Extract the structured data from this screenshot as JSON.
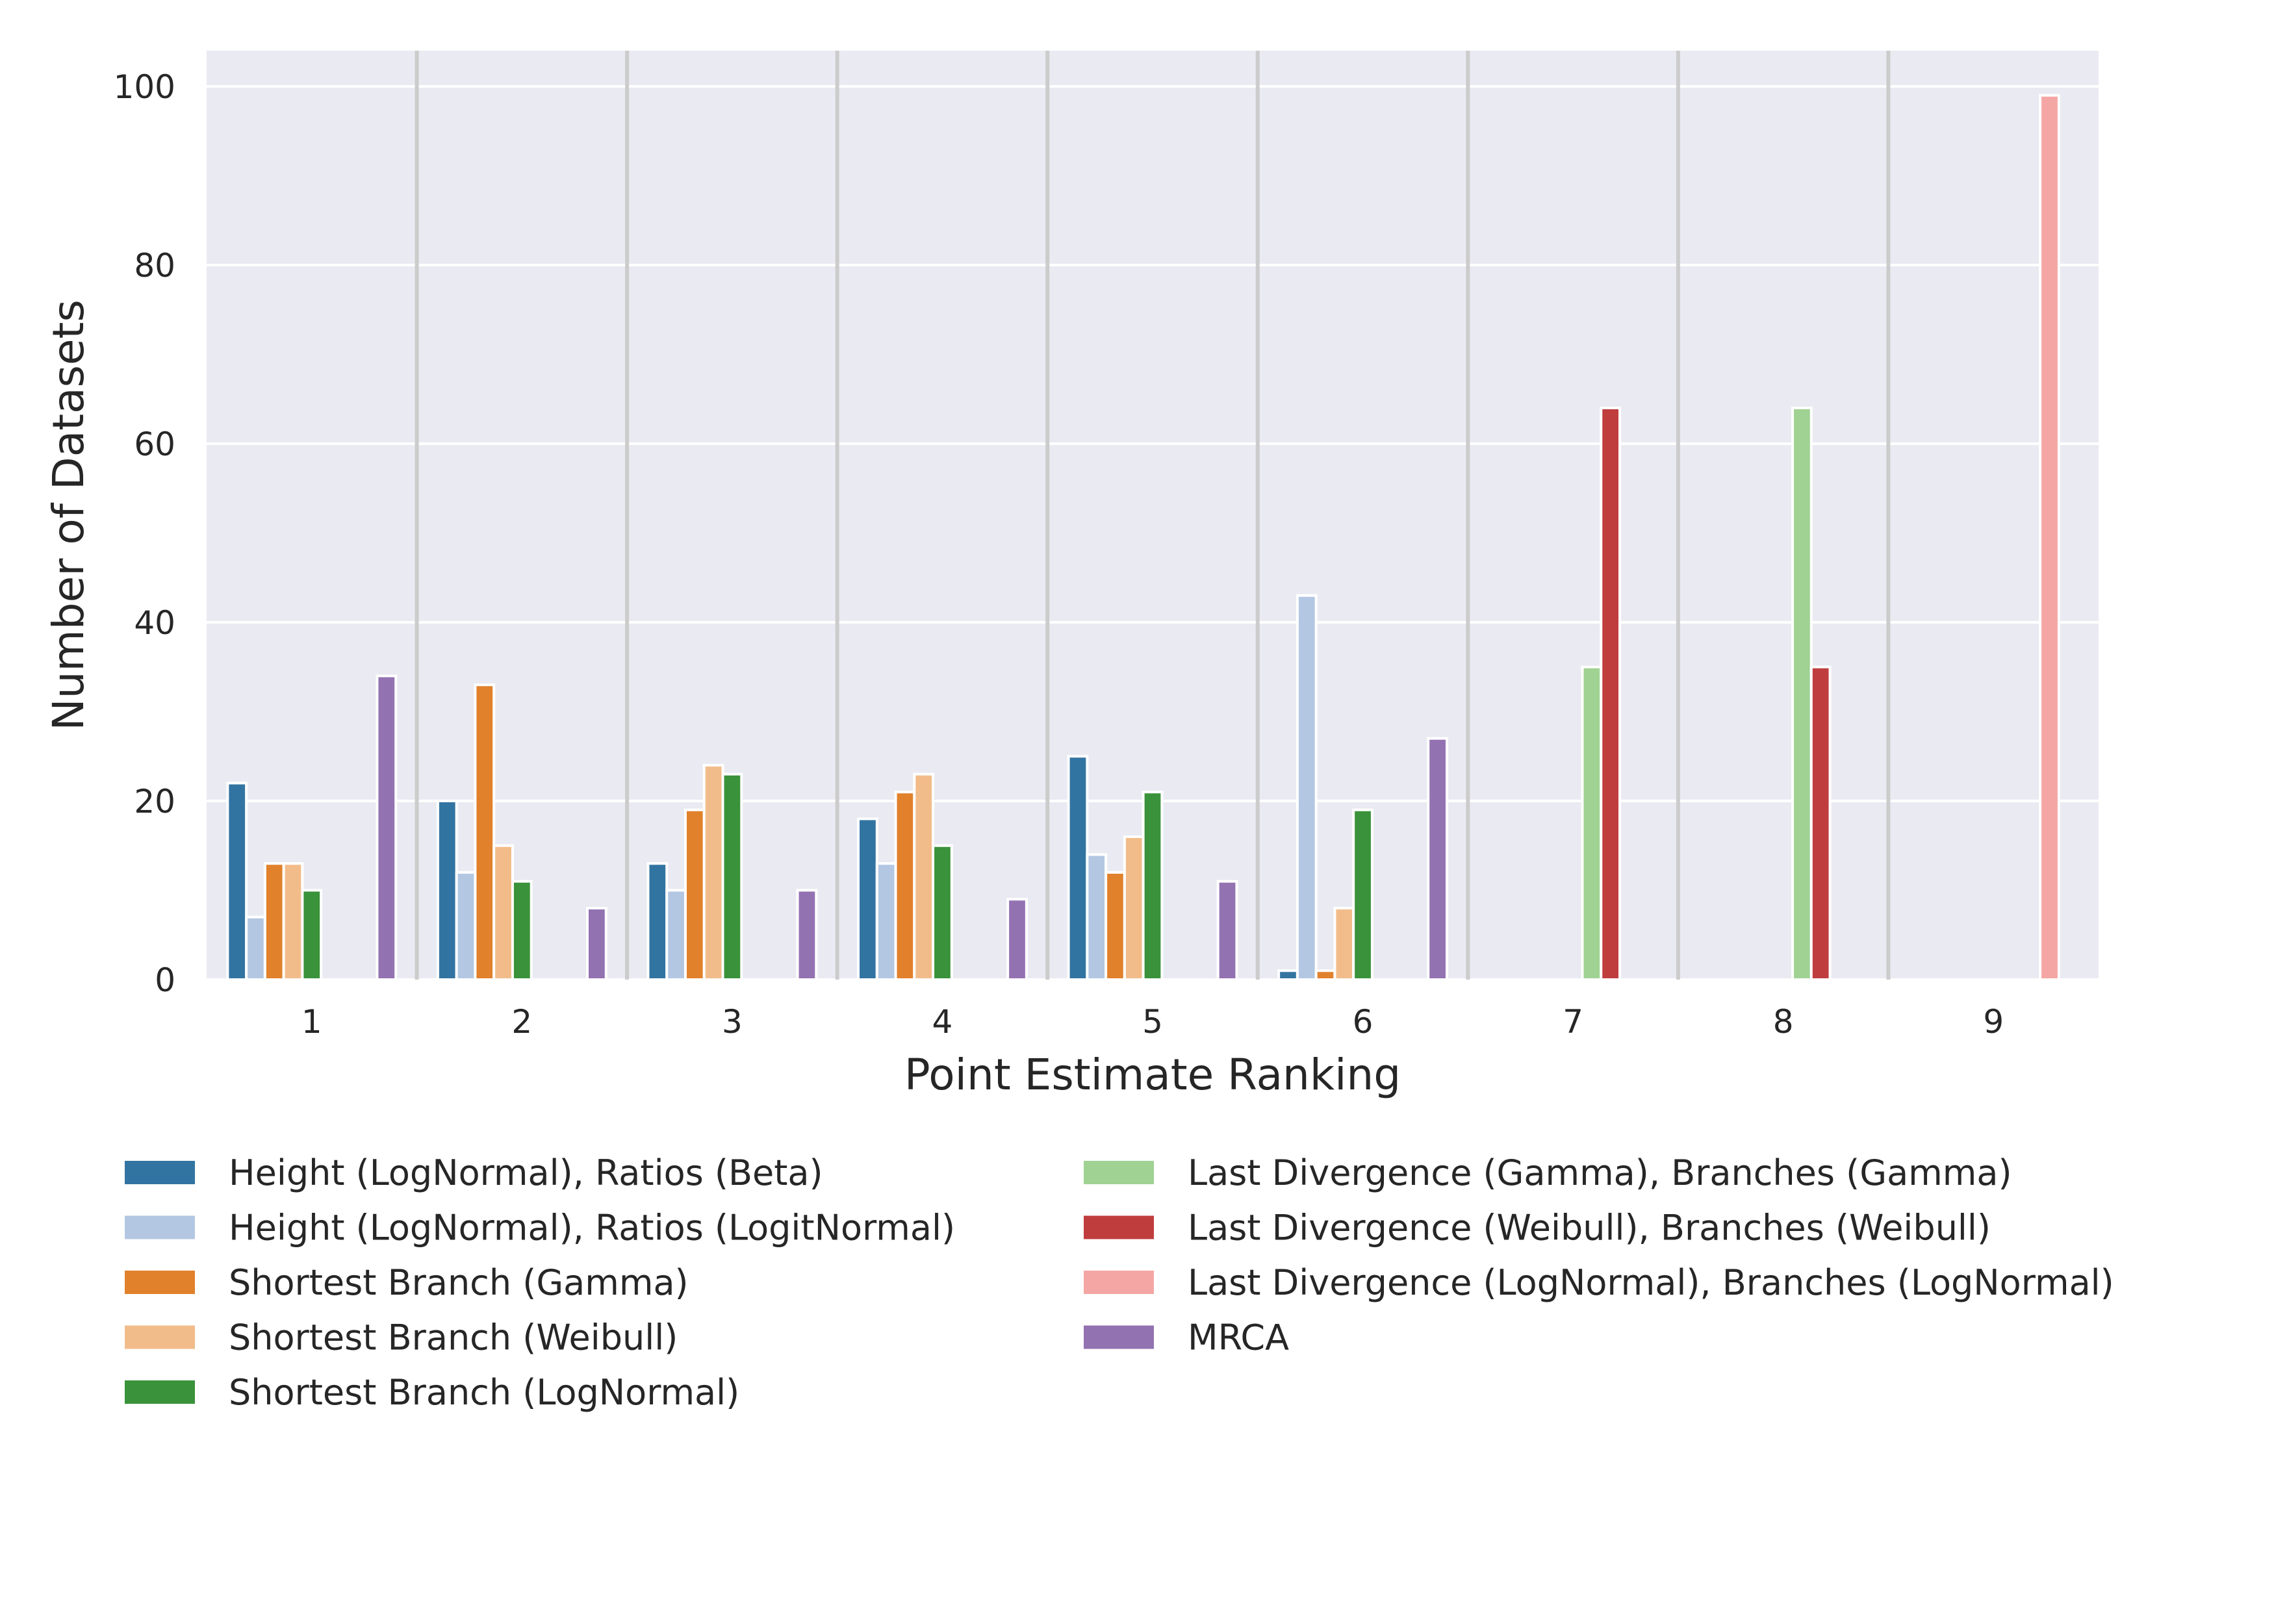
{
  "chart_data": {
    "type": "bar",
    "xlabel": "Point Estimate Ranking",
    "ylabel": "Number of Datasets",
    "ylim": [
      0,
      104
    ],
    "yticks": [
      0,
      20,
      40,
      60,
      80,
      100
    ],
    "grid": true,
    "legend_position": "bottom",
    "categories": [
      "1",
      "2",
      "3",
      "4",
      "5",
      "6",
      "7",
      "8",
      "9"
    ],
    "series": [
      {
        "name": "Height (LogNormal), Ratios (Beta)",
        "color": "#3274a1",
        "values": [
          22,
          20,
          13,
          18,
          25,
          1,
          0,
          0,
          0
        ]
      },
      {
        "name": "Height (LogNormal), Ratios (LogitNormal)",
        "color": "#b3c7e3",
        "values": [
          7,
          12,
          10,
          13,
          14,
          43,
          0,
          0,
          0
        ]
      },
      {
        "name": "Shortest Branch (Gamma)",
        "color": "#e1812c",
        "values": [
          13,
          33,
          19,
          21,
          12,
          1,
          0,
          0,
          0
        ]
      },
      {
        "name": "Shortest Branch (Weibull)",
        "color": "#f2bc8a",
        "values": [
          13,
          15,
          24,
          23,
          16,
          8,
          0,
          0,
          0
        ]
      },
      {
        "name": "Shortest Branch (LogNormal)",
        "color": "#3a923a",
        "values": [
          10,
          11,
          23,
          15,
          21,
          19,
          0,
          0,
          0
        ]
      },
      {
        "name": "Last Divergence (Gamma), Branches (Gamma)",
        "color": "#a0d293",
        "values": [
          0,
          0,
          0,
          0,
          0,
          0,
          35,
          64,
          0
        ]
      },
      {
        "name": "Last Divergence (Weibull), Branches (Weibull)",
        "color": "#c03d3e",
        "values": [
          0,
          0,
          0,
          0,
          0,
          0,
          64,
          35,
          0
        ]
      },
      {
        "name": "Last Divergence (LogNormal), Branches (LogNormal)",
        "color": "#f4a6a4",
        "values": [
          0,
          0,
          0,
          0,
          0,
          0,
          0,
          0,
          99
        ]
      },
      {
        "name": "MRCA",
        "color": "#9372b2",
        "values": [
          34,
          8,
          10,
          9,
          11,
          27,
          0,
          0,
          0
        ]
      }
    ]
  },
  "colors": {
    "plot_background": "#eaeaf2",
    "gridline": "#ffffff",
    "separator": "#cccccc",
    "text": "#262626"
  }
}
